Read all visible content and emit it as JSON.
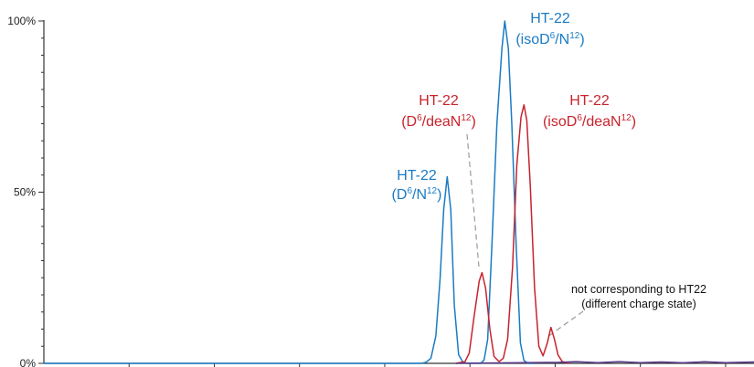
{
  "chart_data": {
    "type": "line",
    "title": "",
    "xlabel": "",
    "ylabel": "",
    "xlim": [
      0,
      100
    ],
    "ylim": [
      0,
      100
    ],
    "y_ticks": [
      {
        "value": 100,
        "label": "100%"
      },
      {
        "value": 50,
        "label": "50%"
      },
      {
        "value": 0,
        "label": "0%"
      }
    ],
    "grid": false,
    "legend": "none",
    "colors": {
      "blue": "#1a7bc4",
      "red": "#c8232c",
      "purple": "#5a3a8c",
      "axis": "#333333",
      "leader": "#9a9a9a"
    },
    "series": [
      {
        "color": "#1a7bc4",
        "points": [
          [
            0,
            0
          ],
          [
            50,
            0
          ],
          [
            53.2,
            0
          ],
          [
            53.8,
            0.3
          ],
          [
            54.5,
            1.5
          ],
          [
            55.2,
            8
          ],
          [
            55.8,
            25
          ],
          [
            56.3,
            45
          ],
          [
            56.8,
            54.5
          ],
          [
            57.3,
            45
          ],
          [
            57.8,
            17
          ],
          [
            58.4,
            2.5
          ],
          [
            59,
            0.4
          ],
          [
            59.6,
            0
          ],
          [
            61.5,
            0
          ],
          [
            62.0,
            1
          ],
          [
            62.5,
            7
          ],
          [
            63.1,
            35
          ],
          [
            63.8,
            70
          ],
          [
            64.5,
            92
          ],
          [
            64.9,
            100
          ],
          [
            65.4,
            92
          ],
          [
            65.9,
            70
          ],
          [
            66.5,
            35
          ],
          [
            67.1,
            6
          ],
          [
            67.6,
            0.8
          ],
          [
            68.2,
            0
          ],
          [
            69,
            0
          ]
        ]
      },
      {
        "color": "#c8232c",
        "points": [
          [
            58,
            0
          ],
          [
            59.3,
            0.5
          ],
          [
            59.9,
            3
          ],
          [
            60.6,
            14
          ],
          [
            61.3,
            24
          ],
          [
            61.7,
            26.5
          ],
          [
            62.2,
            22
          ],
          [
            62.8,
            10
          ],
          [
            63.4,
            2
          ],
          [
            64.1,
            0.5
          ],
          [
            64.7,
            1.5
          ],
          [
            65.3,
            7
          ],
          [
            66.0,
            28
          ],
          [
            66.6,
            58
          ],
          [
            67.2,
            72
          ],
          [
            67.6,
            75.5
          ],
          [
            68.0,
            71
          ],
          [
            68.5,
            52
          ],
          [
            69.1,
            22
          ],
          [
            69.7,
            5
          ],
          [
            70.3,
            2.2
          ],
          [
            70.9,
            6
          ],
          [
            71.4,
            10.5
          ],
          [
            71.9,
            7
          ],
          [
            72.4,
            2.5
          ],
          [
            73.0,
            0.5
          ],
          [
            74,
            0
          ]
        ]
      },
      {
        "color": "#5a3a8c",
        "points": [
          [
            58,
            0
          ],
          [
            72.5,
            0.3
          ],
          [
            75,
            0.5
          ],
          [
            78,
            0.2
          ],
          [
            81,
            0.5
          ],
          [
            84,
            0.2
          ],
          [
            87,
            0.4
          ],
          [
            90,
            0.15
          ],
          [
            93,
            0.45
          ],
          [
            96,
            0.2
          ],
          [
            100,
            0.4
          ]
        ]
      }
    ],
    "annotations": [
      {
        "color": "#1a7bc4",
        "line1": "HT-22",
        "line2_pre": "(D",
        "sup1": "6",
        "line2_mid": "/N",
        "sup2": "12",
        "line2_post": ")"
      },
      {
        "color": "#1a7bc4",
        "line1": "HT-22",
        "line2_pre": "(isoD",
        "sup1": "6",
        "line2_mid": "/N",
        "sup2": "12",
        "line2_post": ")"
      },
      {
        "color": "#c8232c",
        "line1": "HT-22",
        "line2_pre": "(D",
        "sup1": "6",
        "line2_mid": "/deaN",
        "sup2": "12",
        "line2_post": ")"
      },
      {
        "color": "#c8232c",
        "line1": "HT-22",
        "line2_pre": "(isoD",
        "sup1": "6",
        "line2_mid": "/deaN",
        "sup2": "12",
        "line2_post": ")"
      },
      {
        "color": "#111111",
        "line1": "not corresponding to HT22",
        "line2": "(different charge state)"
      }
    ]
  }
}
